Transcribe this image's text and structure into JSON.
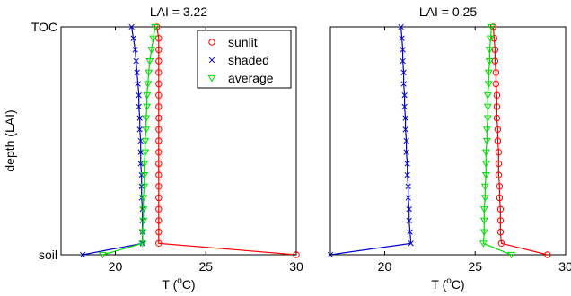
{
  "chart_data": [
    {
      "type": "line",
      "title": "LAI = 3.22",
      "xlabel": "T (°C)",
      "xlabel_parts": {
        "prefix": "T (",
        "superscript": "o",
        "suffix": "C)"
      },
      "ylabel": "depth (LAI)",
      "xlim": [
        17,
        30
      ],
      "xticks": [
        20,
        25,
        30
      ],
      "yticks": [
        "TOC",
        "soil"
      ],
      "legend_position": "top-right",
      "grid": false,
      "series": [
        {
          "name": "sunlit",
          "color": "#ff0000",
          "marker": "circle",
          "x": [
            22.3,
            22.4,
            22.4,
            22.4,
            22.4,
            22.4,
            22.4,
            22.4,
            22.4,
            22.4,
            22.4,
            22.4,
            22.4,
            22.4,
            22.4,
            22.4,
            22.4,
            22.4,
            22.4,
            22.4,
            30.0
          ],
          "y": [
            0,
            0.05,
            0.1,
            0.15,
            0.2,
            0.25,
            0.3,
            0.35,
            0.4,
            0.45,
            0.5,
            0.55,
            0.6,
            0.65,
            0.7,
            0.75,
            0.8,
            0.85,
            0.9,
            0.95,
            1.0
          ]
        },
        {
          "name": "shaded",
          "color": "#0000cc",
          "marker": "x",
          "x": [
            20.9,
            21.0,
            21.1,
            21.15,
            21.2,
            21.25,
            21.3,
            21.3,
            21.35,
            21.35,
            21.4,
            21.4,
            21.4,
            21.45,
            21.45,
            21.45,
            21.5,
            21.5,
            21.5,
            21.5,
            18.2
          ],
          "y": [
            0,
            0.05,
            0.1,
            0.15,
            0.2,
            0.25,
            0.3,
            0.35,
            0.4,
            0.45,
            0.5,
            0.55,
            0.6,
            0.65,
            0.7,
            0.75,
            0.8,
            0.85,
            0.9,
            0.95,
            1.0
          ]
        },
        {
          "name": "average",
          "color": "#00dd00",
          "marker": "triangle-down",
          "x": [
            22.2,
            22.1,
            22.0,
            21.9,
            21.85,
            21.8,
            21.75,
            21.75,
            21.7,
            21.7,
            21.65,
            21.65,
            21.6,
            21.6,
            21.6,
            21.55,
            21.55,
            21.55,
            21.5,
            21.5,
            19.3
          ],
          "y": [
            0,
            0.05,
            0.1,
            0.15,
            0.2,
            0.25,
            0.3,
            0.35,
            0.4,
            0.45,
            0.5,
            0.55,
            0.6,
            0.65,
            0.7,
            0.75,
            0.8,
            0.85,
            0.9,
            0.95,
            1.0
          ]
        }
      ]
    },
    {
      "type": "line",
      "title": "LAI = 0.25",
      "xlabel": "T (°C)",
      "xlabel_parts": {
        "prefix": "T (",
        "superscript": "o",
        "suffix": "C)"
      },
      "ylabel": "",
      "xlim": [
        17,
        30
      ],
      "xticks": [
        20,
        25,
        30
      ],
      "yticks": [],
      "grid": false,
      "series": [
        {
          "name": "sunlit",
          "color": "#ff0000",
          "marker": "circle",
          "x": [
            26.0,
            26.05,
            26.1,
            26.1,
            26.15,
            26.15,
            26.2,
            26.2,
            26.2,
            26.25,
            26.25,
            26.3,
            26.3,
            26.3,
            26.35,
            26.35,
            26.4,
            26.4,
            26.4,
            26.45,
            29.0
          ],
          "y": [
            0,
            0.05,
            0.1,
            0.15,
            0.2,
            0.25,
            0.3,
            0.35,
            0.4,
            0.45,
            0.5,
            0.55,
            0.6,
            0.65,
            0.7,
            0.75,
            0.8,
            0.85,
            0.9,
            0.95,
            1.0
          ]
        },
        {
          "name": "shaded",
          "color": "#0000cc",
          "marker": "x",
          "x": [
            20.9,
            20.95,
            21.0,
            21.0,
            21.05,
            21.05,
            21.1,
            21.1,
            21.15,
            21.15,
            21.2,
            21.2,
            21.25,
            21.25,
            21.3,
            21.3,
            21.35,
            21.35,
            21.4,
            21.45,
            17.0
          ],
          "y": [
            0,
            0.05,
            0.1,
            0.15,
            0.2,
            0.25,
            0.3,
            0.35,
            0.4,
            0.45,
            0.5,
            0.55,
            0.6,
            0.65,
            0.7,
            0.75,
            0.8,
            0.85,
            0.9,
            0.95,
            1.0
          ]
        },
        {
          "name": "average",
          "color": "#00dd00",
          "marker": "triangle-down",
          "x": [
            25.9,
            25.85,
            25.8,
            25.8,
            25.75,
            25.75,
            25.7,
            25.7,
            25.7,
            25.65,
            25.65,
            25.6,
            25.6,
            25.6,
            25.55,
            25.55,
            25.5,
            25.5,
            25.5,
            25.45,
            27.0
          ],
          "y": [
            0,
            0.05,
            0.1,
            0.15,
            0.2,
            0.25,
            0.3,
            0.35,
            0.4,
            0.45,
            0.5,
            0.55,
            0.6,
            0.65,
            0.7,
            0.75,
            0.8,
            0.85,
            0.9,
            0.95,
            1.0
          ]
        }
      ]
    }
  ]
}
